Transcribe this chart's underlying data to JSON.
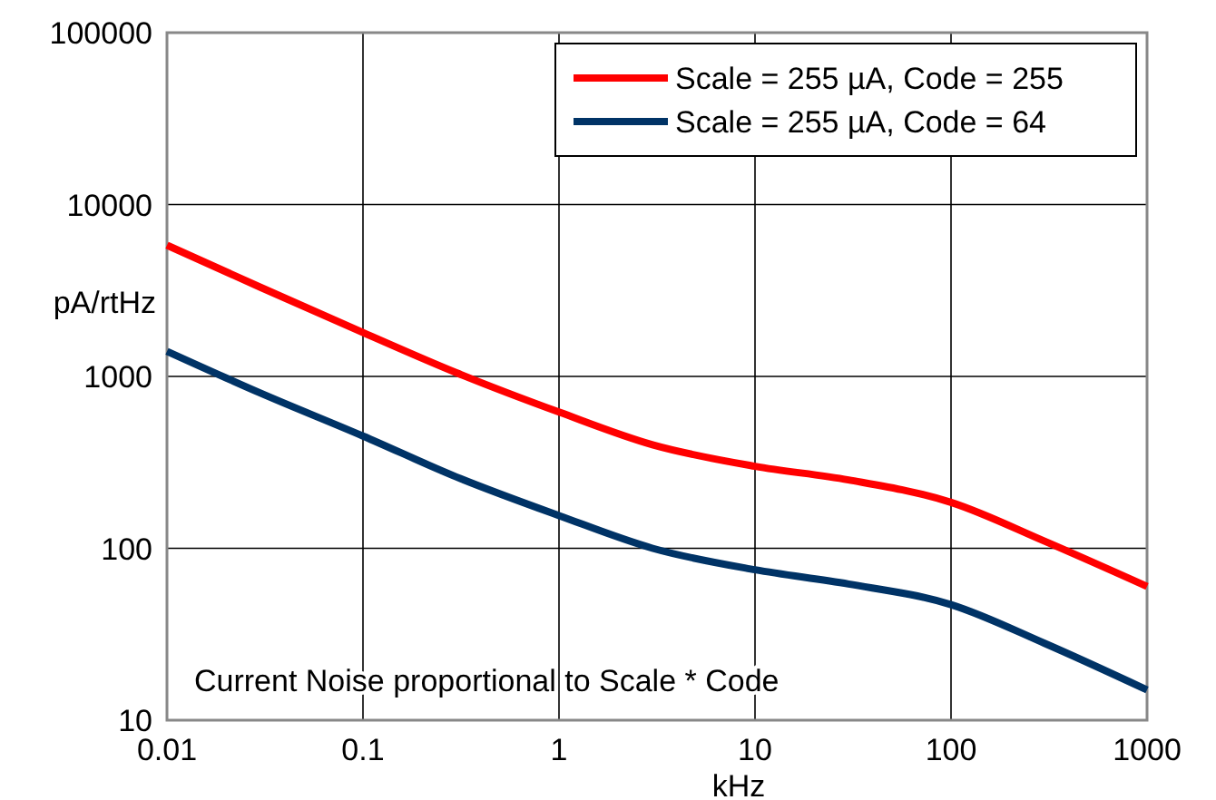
{
  "chart_data": {
    "type": "line",
    "xlabel": "kHz",
    "ylabel": "pA/rtHz",
    "log": "xy",
    "grid": true,
    "legend": "top right",
    "xlim": [
      0.01,
      1000
    ],
    "xticks": [
      0.01,
      0.1,
      1,
      10,
      100,
      1000
    ],
    "ylim": [
      10,
      100000
    ],
    "yticks": [
      10,
      100,
      1000,
      10000,
      100000
    ],
    "x": [
      0.01,
      0.03,
      0.1,
      0.3,
      1,
      3,
      10,
      30,
      100,
      300,
      1000
    ],
    "series": [
      {
        "name": "Scale = 255 µA, Code = 255",
        "color": "#ff0000",
        "values": [
          5800,
          3300,
          1800,
          1050,
          620,
          400,
          300,
          250,
          185,
          110,
          60
        ]
      },
      {
        "name": "Scale = 255 µA, Code = 64",
        "color": "#003366",
        "values": [
          1400,
          800,
          450,
          260,
          155,
          100,
          75,
          62,
          47,
          28,
          15
        ]
      }
    ],
    "annotations": [
      "Current Noise proportional to Scale * Code"
    ]
  }
}
